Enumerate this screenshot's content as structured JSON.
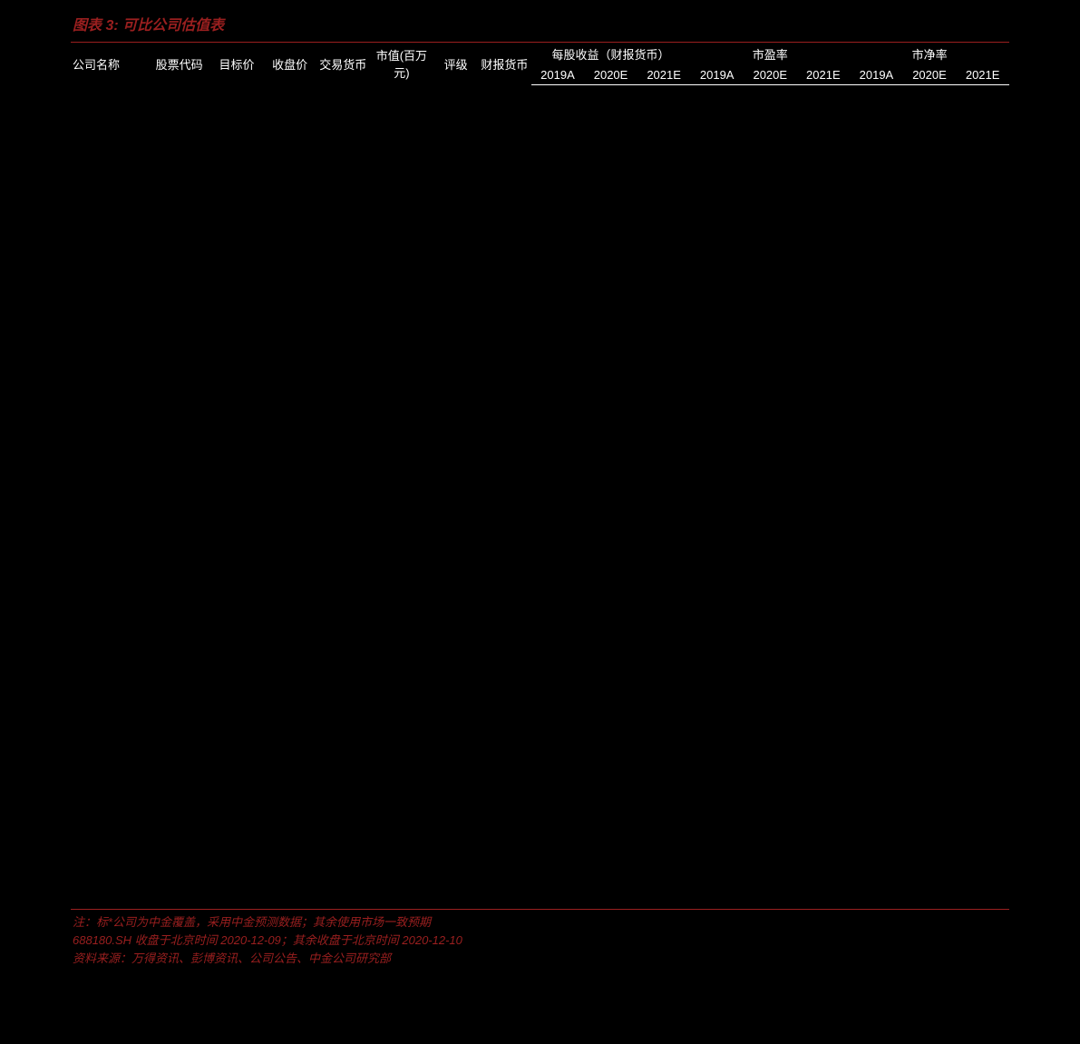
{
  "title": "图表 3: 可比公司估值表",
  "title_color": "#9a1f1f",
  "divider_color": "#9a1f1f",
  "header_bottom_border_color": "#ffffff",
  "background_color": "#000000",
  "text_color": "#ffffff",
  "font_size_title": 16,
  "font_size_header": 13,
  "font_size_footnote": 13,
  "headers_row1": {
    "company_name": "公司名称",
    "stock_code": "股票代码",
    "target_price": "目标价",
    "close_price": "收盘价",
    "trade_currency": "交易货币",
    "market_cap": "市值(百万元)",
    "rating": "评级",
    "report_currency": "财报货币",
    "eps": "每股收益（财报货币）",
    "pe": "市盈率",
    "pb": "市净率"
  },
  "year_labels": {
    "y2019A": "2019A",
    "y2020E": "2020E",
    "y2021E": "2021E"
  },
  "footnotes": {
    "note1": "注：标*公司为中金覆盖，采用中金预测数据；其余使用市场一致预期",
    "note2": "688180.SH 收盘于北京时间 2020-12-09；其余收盘于北京时间 2020-12-10",
    "note3": "资料来源：万得资讯、彭博资讯、公司公告、中金公司研究部"
  }
}
